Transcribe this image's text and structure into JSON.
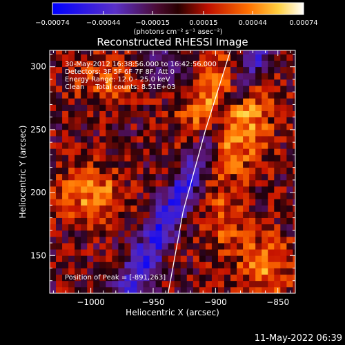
{
  "chart_data": {
    "type": "heatmap",
    "title": "Reconstructed RHESSI Image",
    "xlabel": "Heliocentric X (arcsec)",
    "ylabel": "Heliocentric Y (arcsec)",
    "xlim": [
      -1033,
      -836
    ],
    "ylim": [
      120,
      313
    ],
    "x_ticks": [
      {
        "value": -1000,
        "label": "−1000"
      },
      {
        "value": -950,
        "label": "−950"
      },
      {
        "value": -900,
        "label": "−900"
      },
      {
        "value": -850,
        "label": "−850"
      }
    ],
    "y_ticks": [
      {
        "value": 150,
        "label": "150"
      },
      {
        "value": 200,
        "label": "200"
      },
      {
        "value": 250,
        "label": "250"
      },
      {
        "value": 300,
        "label": "300"
      }
    ],
    "annotations": [
      "30-May-2012 16:38:56.000 to 16:42:56.000",
      "Detectors: 3F 5F 6F 7F 8F, Att 0",
      "Energy Range: 12.0 - 25.0 keV",
      "Clean     Total counts: 8.51E+03"
    ],
    "peak_label": "Position of Peak = [-891,263]",
    "peak": {
      "x": -891,
      "y": 263
    },
    "limb": [
      {
        "x": -938,
        "y": 120
      },
      {
        "x": -926,
        "y": 185
      },
      {
        "x": -908,
        "y": 250
      },
      {
        "x": -888,
        "y": 313
      }
    ],
    "colorbar": {
      "range": [
        -0.00074,
        0.00074
      ],
      "unit_label": "(photons cm⁻² s⁻¹ asec⁻²)",
      "tick_labels": [
        {
          "value": -0.00074,
          "label": "−0.00074"
        },
        {
          "value": -0.00044,
          "label": "−0.00044"
        },
        {
          "value": -0.00015,
          "label": "−0.00015"
        },
        {
          "value": 0.00015,
          "label": "0.00015"
        },
        {
          "value": 0.00044,
          "label": "0.00044"
        },
        {
          "value": 0.00074,
          "label": "0.00074"
        }
      ]
    },
    "grid": false
  },
  "footer": {
    "timestamp": "11-May-2022 06:39"
  },
  "colors": {
    "background": "#000000",
    "foreground": "#ffffff",
    "negative": "#2020ff",
    "positive": "#ff3000",
    "peak": "#ffff60"
  }
}
